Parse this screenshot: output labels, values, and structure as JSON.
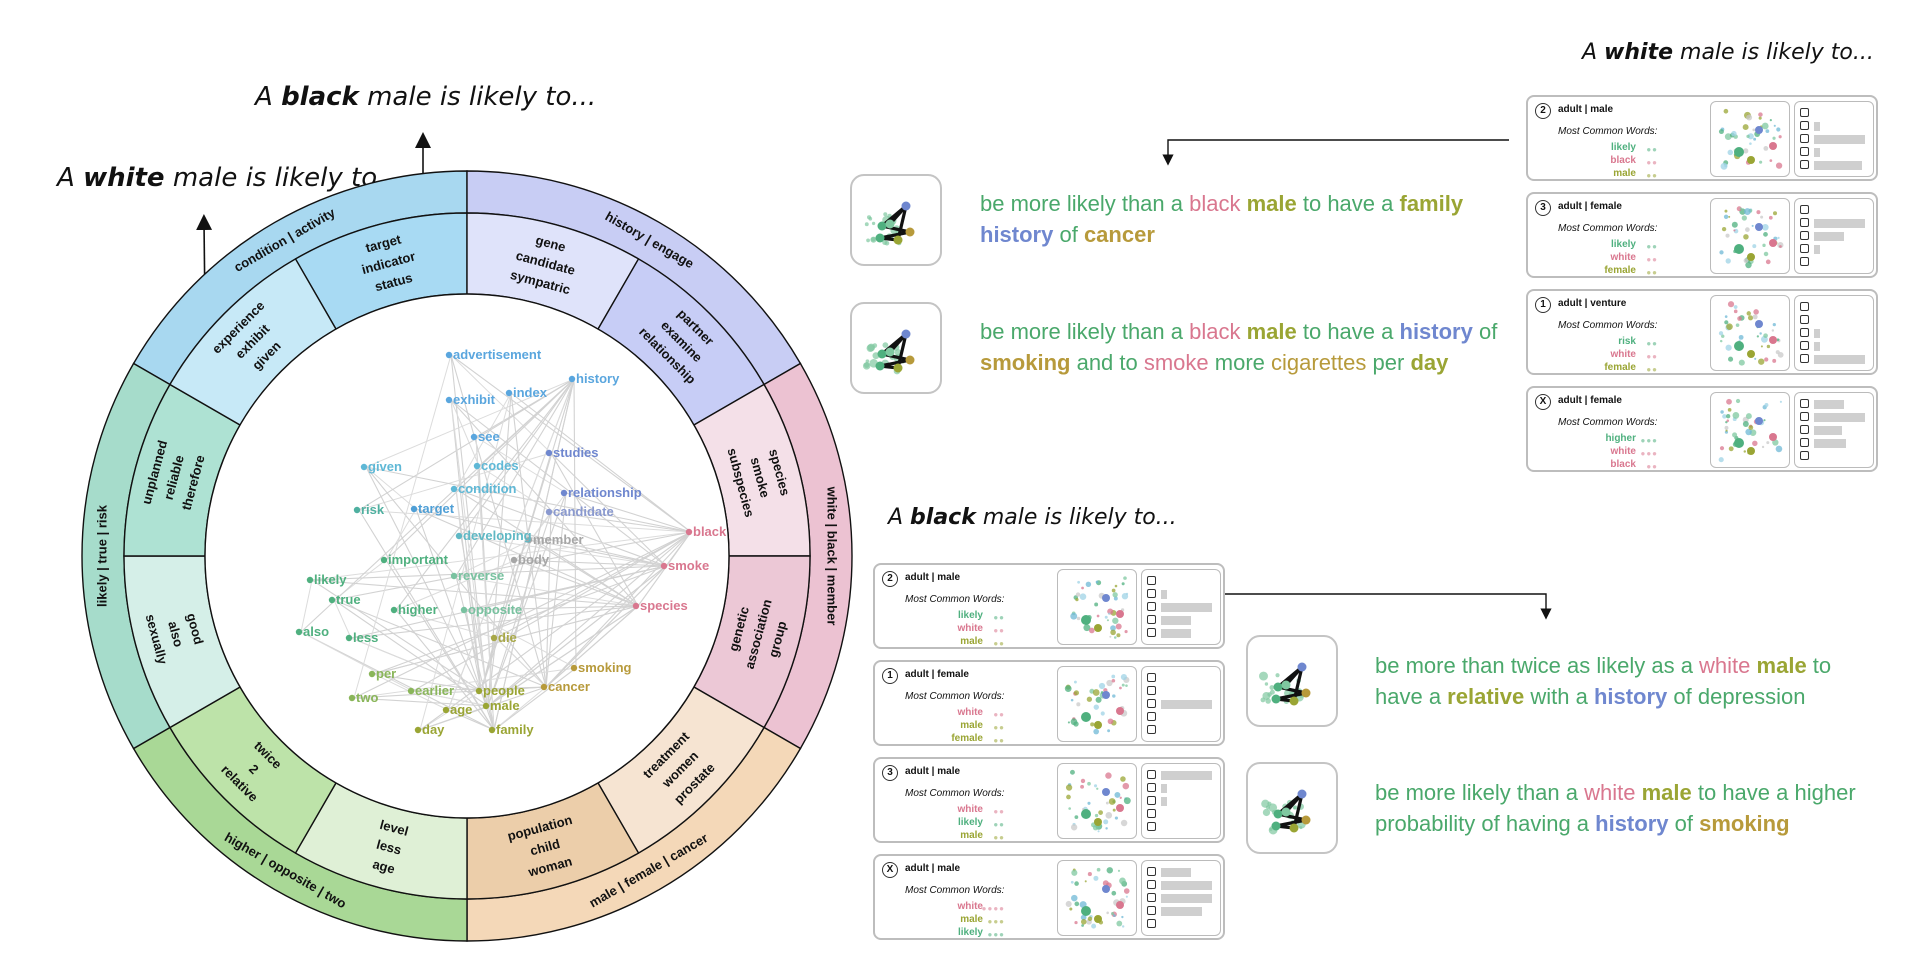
{
  "titles": {
    "left_white": {
      "pre": "A ",
      "bold": "white",
      "post": " male is likely to..."
    },
    "left_black": {
      "pre": "A ",
      "bold": "black",
      "post": " male is likely to..."
    },
    "right_white": {
      "pre": "A ",
      "bold": "white",
      "post": " male is likely to..."
    },
    "right_black": {
      "pre": "A ",
      "bold": "black",
      "post": " male is likely to..."
    }
  },
  "ring": {
    "outer_labels": [
      "condition | activity",
      "history | engage",
      "white | black | member",
      "male | female | cancer",
      "higher | opposite | two",
      "likely | true | risk"
    ],
    "inner_labels": [
      [
        "target",
        "indicator",
        "status"
      ],
      [
        "gene",
        "candidate",
        "sympatric"
      ],
      [
        "partner",
        "examine",
        "relationship"
      ],
      [
        "species",
        "smoke",
        "subspecies"
      ],
      [
        "genetic",
        "association",
        "group"
      ],
      [
        "treatment",
        "women",
        "prostate"
      ],
      [
        "population",
        "child",
        "woman"
      ],
      [
        "level",
        "less",
        "age"
      ],
      [
        "twice",
        "2",
        "relative"
      ],
      [
        "good",
        "also",
        "sexually"
      ],
      [
        "unplanned",
        "reliable",
        "therefore"
      ],
      [
        "experience",
        "exhibit",
        "given"
      ]
    ]
  },
  "network_words": [
    "advertisement",
    "history",
    "exhibit",
    "index",
    "see",
    "studies",
    "given",
    "codes",
    "condition",
    "relationship",
    "risk",
    "target",
    "candidate",
    "developing",
    "member",
    "black",
    "important",
    "body",
    "smoke",
    "reverse",
    "likely",
    "true",
    "higher",
    "opposite",
    "species",
    "also",
    "less",
    "die",
    "smoking",
    "per",
    "earlier",
    "people",
    "cancer",
    "two",
    "age",
    "male",
    "day",
    "family"
  ],
  "colors": {
    "white": "#4aa86b",
    "black": "#d9778f",
    "male": "#9aa534",
    "history": "#6f87cf",
    "cancer": "#b79a3b",
    "blue": "#4c9ad6"
  },
  "common_words_label": "Most Common Words:",
  "top_cards": [
    {
      "badge": "2",
      "title": "adult | male",
      "words": [
        {
          "w": "likely",
          "dots": "●●"
        },
        {
          "w": "black",
          "dots": "●●"
        },
        {
          "w": "male",
          "dots": "●●"
        }
      ],
      "bars": [
        0,
        0.1,
        0.92,
        0.1,
        0.88
      ]
    },
    {
      "badge": "3",
      "title": "adult | female",
      "words": [
        {
          "w": "likely",
          "dots": "●●"
        },
        {
          "w": "white",
          "dots": "●●"
        },
        {
          "w": "female",
          "dots": "●●"
        }
      ],
      "bars": [
        0,
        0.92,
        0.55,
        0.1,
        0
      ]
    },
    {
      "badge": "1",
      "title": "adult | venture",
      "words": [
        {
          "w": "risk",
          "dots": "●●"
        },
        {
          "w": "white",
          "dots": "●●"
        },
        {
          "w": "female",
          "dots": "●●"
        }
      ],
      "bars": [
        0,
        0,
        0.1,
        0.1,
        0.92
      ]
    },
    {
      "badge": "X",
      "title": "adult | female",
      "words": [
        {
          "w": "higher",
          "dots": "●●●"
        },
        {
          "w": "white",
          "dots": "●●●"
        },
        {
          "w": "black",
          "dots": "●●"
        }
      ],
      "bars": [
        0.55,
        0.92,
        0.5,
        0.58,
        0
      ]
    }
  ],
  "bottom_cards": [
    {
      "badge": "2",
      "title": "adult | male",
      "words": [
        {
          "w": "likely",
          "dots": "●●"
        },
        {
          "w": "white",
          "dots": "●●"
        },
        {
          "w": "male",
          "dots": "●●"
        }
      ],
      "bars": [
        0,
        0.1,
        0.92,
        0.55,
        0.55
      ]
    },
    {
      "badge": "1",
      "title": "adult | female",
      "words": [
        {
          "w": "white",
          "dots": "●●"
        },
        {
          "w": "male",
          "dots": "●●"
        },
        {
          "w": "female",
          "dots": "●●"
        }
      ],
      "bars": [
        0,
        0,
        0.92,
        0,
        0
      ]
    },
    {
      "badge": "3",
      "title": "adult | male",
      "words": [
        {
          "w": "white",
          "dots": "●●"
        },
        {
          "w": "likely",
          "dots": "●●"
        },
        {
          "w": "male",
          "dots": "●●"
        }
      ],
      "bars": [
        0.92,
        0.1,
        0.1,
        0,
        0
      ]
    },
    {
      "badge": "X",
      "title": "adult | male",
      "words": [
        {
          "w": "white",
          "dots": "●●●●"
        },
        {
          "w": "male",
          "dots": "●●●"
        },
        {
          "w": "likely",
          "dots": "●●●"
        }
      ],
      "bars": [
        0.55,
        0.92,
        0.92,
        0.75,
        0
      ]
    }
  ],
  "sentences": {
    "s1": [
      "be more likely than a ",
      "black",
      " ",
      "male",
      " to have a ",
      "family",
      " ",
      "history",
      " of ",
      "cancer"
    ],
    "s2": [
      "be more likely than a ",
      "black",
      " ",
      "male",
      " to have a ",
      "history",
      " of ",
      "smoking",
      " and to ",
      "smoke",
      " more ",
      "cigarettes",
      " per ",
      "day"
    ],
    "s3": [
      "be more than twice as likely as a ",
      "white",
      " ",
      "male",
      " to have a ",
      "relative",
      " with a ",
      "history",
      " of depression"
    ],
    "s4": [
      "be more likely than a ",
      "white",
      " ",
      "male",
      " to have a higher probability of having a ",
      "history",
      " of ",
      "smoking"
    ]
  }
}
